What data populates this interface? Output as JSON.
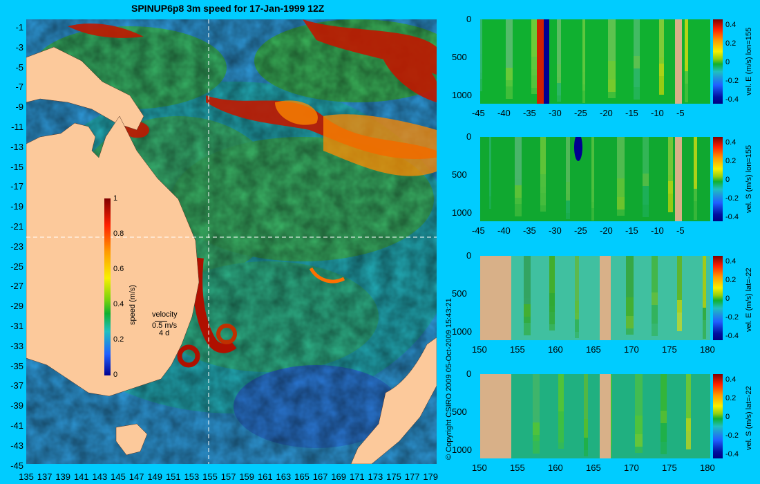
{
  "title": "SPINUP6p8 3m speed for 17-Jan-1999 12Z",
  "map": {
    "lat_ticks": [
      "-1",
      "-3",
      "-5",
      "-7",
      "-9",
      "-11",
      "-13",
      "-15",
      "-17",
      "-19",
      "-21",
      "-23",
      "-25",
      "-27",
      "-29",
      "-31",
      "-33",
      "-35",
      "-37",
      "-39",
      "-41",
      "-43",
      "-45"
    ],
    "lon_ticks": [
      "135",
      "137",
      "139",
      "141",
      "143",
      "145",
      "147",
      "149",
      "151",
      "153",
      "155",
      "157",
      "159",
      "161",
      "163",
      "165",
      "167",
      "169",
      "171",
      "173",
      "175",
      "177",
      "179"
    ],
    "colorbar": {
      "label": "speed (m/s)",
      "ticks": [
        "1",
        "0.8",
        "0.6",
        "0.4",
        "0.2",
        "0"
      ]
    },
    "velocity_legend": {
      "title": "velocity",
      "speed": "0.5 m/s",
      "duration": "4 d"
    }
  },
  "copyright": "© Copyright CSIRO 2009   05-Oct-2009 15:43:21",
  "panels": [
    {
      "label": "vel. E (m/s) lon=155",
      "x_ticks": [
        "-45",
        "-40",
        "-35",
        "-30",
        "-25",
        "-20",
        "-15",
        "-10",
        "-5"
      ],
      "y_ticks": [
        "0",
        "500",
        "1000"
      ],
      "cb_ticks": [
        "0.4",
        "0.2",
        "0",
        "-0.2",
        "-0.4"
      ]
    },
    {
      "label": "vel. S (m/s) lon=155",
      "x_ticks": [
        "-45",
        "-40",
        "-35",
        "-30",
        "-25",
        "-20",
        "-15",
        "-10",
        "-5"
      ],
      "y_ticks": [
        "0",
        "500",
        "1000"
      ],
      "cb_ticks": [
        "0.4",
        "0.2",
        "0",
        "-0.2",
        "-0.4"
      ]
    },
    {
      "label": "vel. E (m/s) lat=-22",
      "x_ticks": [
        "150",
        "155",
        "160",
        "165",
        "170",
        "175",
        "180"
      ],
      "y_ticks": [
        "0",
        "500",
        "1000"
      ],
      "cb_ticks": [
        "0.4",
        "0.2",
        "0",
        "-0.2",
        "-0.4"
      ]
    },
    {
      "label": "vel. S (m/s) lat=-22",
      "x_ticks": [
        "150",
        "155",
        "160",
        "165",
        "170",
        "175",
        "180"
      ],
      "y_ticks": [
        "0",
        "500",
        "1000"
      ],
      "cb_ticks": [
        "0.4",
        "0.2",
        "0",
        "-0.2",
        "-0.4"
      ]
    }
  ]
}
